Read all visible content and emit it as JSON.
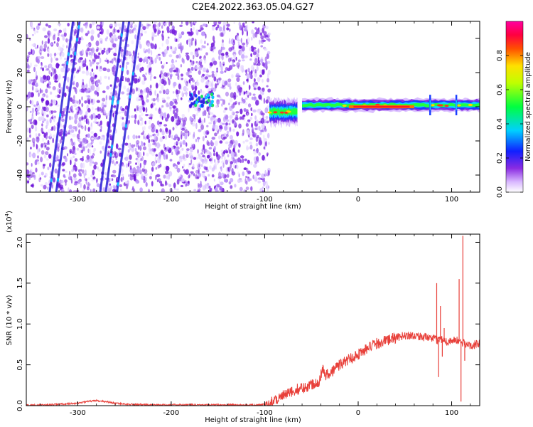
{
  "title": "C2E4.2022.363.05.04.G27",
  "chart_data": [
    {
      "type": "heatmap",
      "xlabel": "Height of straight line (km)",
      "ylabel": "Frequency (Hz)",
      "xlim": [
        -355,
        130
      ],
      "ylim": [
        -50,
        50
      ],
      "xticks": [
        -300,
        -200,
        -100,
        0,
        100
      ],
      "yticks": [
        -40,
        -20,
        0,
        20,
        40
      ],
      "xtick_labels": [
        "-300",
        "-200",
        "-100",
        "0",
        "100"
      ],
      "ytick_labels": [
        "-40",
        "-20",
        "0",
        "20",
        "40"
      ],
      "colorbar": {
        "label": "Normalized spectral amplitude",
        "range": [
          0,
          1
        ],
        "ticks": [
          0.0,
          0.2,
          0.4,
          0.6,
          0.8
        ],
        "tick_labels": [
          "0.0",
          "0.2",
          "0.4",
          "0.6",
          "0.8"
        ]
      },
      "features": {
        "noise_region_x": [
          -355,
          -95
        ],
        "diagonal_tracks": [
          {
            "x_at_bottom": -330,
            "x_at_top": -305
          },
          {
            "x_at_bottom": -323,
            "x_at_top": -298
          },
          {
            "x_at_bottom": -276,
            "x_at_top": -251
          },
          {
            "x_at_bottom": -270,
            "x_at_top": -245
          },
          {
            "x_at_bottom": -258,
            "x_at_top": -233
          }
        ],
        "patch": {
          "x": [
            -180,
            -155
          ],
          "y": [
            0,
            8
          ]
        },
        "signal_segments": [
          {
            "x": [
              -95,
              -65
            ],
            "y_center": -3,
            "half_width": 4
          },
          {
            "x": [
              -60,
              130
            ],
            "y_center": 1,
            "half_width": 2
          }
        ],
        "hot_core": {
          "x": [
            -10,
            60
          ],
          "y": 0
        },
        "spikes_x": [
          77,
          105
        ]
      }
    },
    {
      "type": "line",
      "xlabel": "Height of straight line (km)",
      "ylabel": "SNR (10 * v/v)",
      "scale_label": "(x10",
      "scale_exponent": "4",
      "scale_close": ")",
      "xlim": [
        -355,
        130
      ],
      "ylim": [
        0,
        2.1
      ],
      "xticks": [
        -300,
        -200,
        -100,
        0,
        100
      ],
      "yticks": [
        0.0,
        0.5,
        1.0,
        1.5,
        2.0
      ],
      "xtick_labels": [
        "-300",
        "-200",
        "-100",
        "0",
        "100"
      ],
      "ytick_labels": [
        "0.0",
        "0.5",
        "1.0",
        "1.5",
        "2.0"
      ],
      "color": "#e8403a",
      "series": [
        {
          "x": [
            -355,
            -330,
            -300,
            -290,
            -280,
            -270,
            -260,
            -245,
            -220,
            -200,
            -150,
            -105,
            -100,
            -95,
            -88,
            -80,
            -72,
            -65,
            -58,
            -50,
            -42,
            -38,
            -35,
            -30,
            -25,
            -20,
            -10,
            0,
            10,
            20,
            30,
            40,
            50,
            60,
            70,
            80,
            85,
            90,
            95,
            100,
            105,
            110,
            115,
            120,
            125,
            130
          ],
          "y": [
            0.005,
            0.01,
            0.03,
            0.05,
            0.06,
            0.05,
            0.03,
            0.015,
            0.01,
            0.01,
            0.01,
            0.01,
            0.015,
            0.03,
            0.08,
            0.12,
            0.16,
            0.2,
            0.22,
            0.26,
            0.3,
            0.45,
            0.38,
            0.38,
            0.46,
            0.5,
            0.57,
            0.63,
            0.7,
            0.76,
            0.8,
            0.83,
            0.86,
            0.86,
            0.84,
            0.82,
            0.8,
            0.82,
            0.78,
            0.8,
            0.8,
            0.78,
            0.75,
            0.74,
            0.75,
            0.76
          ]
        }
      ],
      "spikes": [
        {
          "x": 84,
          "y": 1.5
        },
        {
          "x": 86,
          "y": 0.35
        },
        {
          "x": 88,
          "y": 1.22
        },
        {
          "x": 90,
          "y": 0.6
        },
        {
          "x": 92,
          "y": 0.95
        },
        {
          "x": 108,
          "y": 1.55
        },
        {
          "x": 110,
          "y": 0.05
        },
        {
          "x": 112,
          "y": 2.08
        },
        {
          "x": 114,
          "y": 0.55
        }
      ]
    }
  ]
}
